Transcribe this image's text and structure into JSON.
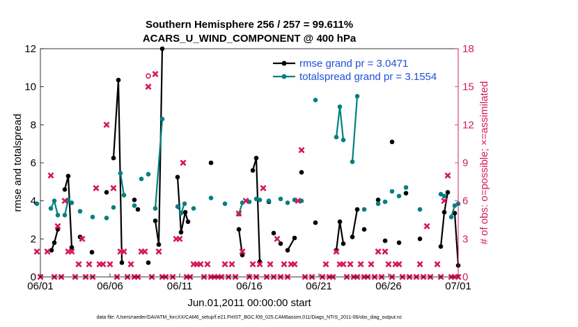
{
  "chart_data": {
    "type": "line",
    "title": [
      "Southern Hemisphere 256 / 257 = 99.611%",
      "ACARS_U_WIND_COMPONENT @ 400 hPa"
    ],
    "xlabel": "Jun.01,2011 00:00:00 start",
    "ylabel": "rmse and totalspread",
    "ylabel_right": "# of obs: o=possible; ×=assimilated",
    "footnote": "data file: /Users/raeder/DAI/ATM_forcXX/CAM6_setup/f.e21.FHIST_BGC.f09_025.CAM6assim.011/Diags_NTrS_2011-06/obs_diag_output.nc",
    "xlim": [
      0,
      30
    ],
    "ylim": [
      0,
      12
    ],
    "ylim_right": [
      0,
      18
    ],
    "x_ticks": [
      {
        "x": 0,
        "label": "06/01"
      },
      {
        "x": 5,
        "label": "06/06"
      },
      {
        "x": 10,
        "label": "06/11"
      },
      {
        "x": 15,
        "label": "06/16"
      },
      {
        "x": 20,
        "label": "06/21"
      },
      {
        "x": 25,
        "label": "06/26"
      },
      {
        "x": 30,
        "label": "07/01"
      }
    ],
    "y_ticks": [
      0,
      2,
      4,
      6,
      8,
      10,
      12
    ],
    "y_ticks_right": [
      0,
      3,
      6,
      9,
      12,
      15,
      18
    ],
    "legend_position": "top-right",
    "series": [
      {
        "name": "rmse grand pr = 3.0471",
        "color": "#000000",
        "segments": [
          [
            [
              0.8,
              1.4
            ],
            [
              1.0,
              1.8
            ],
            [
              1.25,
              2.5
            ]
          ],
          [
            [
              1.75,
              4.6
            ],
            [
              2.0,
              5.3
            ],
            [
              2.25,
              1.55
            ]
          ],
          [
            [
              2.85,
              2.1
            ]
          ],
          [
            [
              3.7,
              1.3
            ]
          ],
          [
            [
              4.75,
              4.45
            ]
          ],
          [
            [
              5.25,
              6.25
            ],
            [
              5.6,
              10.35
            ],
            [
              5.85,
              0.75
            ]
          ],
          [
            [
              6.75,
              4.05
            ]
          ],
          [
            [
              7.0,
              3.55
            ]
          ],
          [
            [
              7.75,
              0.75
            ]
          ],
          [
            [
              8.25,
              2.95
            ],
            [
              8.5,
              1.7
            ],
            [
              8.75,
              12.0
            ]
          ],
          [
            [
              9.85,
              5.25
            ],
            [
              10.1,
              2.35
            ],
            [
              10.4,
              3.4
            ],
            [
              10.6,
              2.9
            ]
          ],
          [
            [
              12.25,
              6.0
            ]
          ],
          [
            [
              14.25,
              2.5
            ],
            [
              14.5,
              1.15
            ]
          ],
          [
            [
              15.25,
              5.6
            ],
            [
              15.5,
              6.25
            ],
            [
              15.75,
              0.8
            ]
          ],
          [
            [
              16.4,
              3.95
            ]
          ],
          [
            [
              16.75,
              2.3
            ]
          ],
          [
            [
              17.25,
              1.75
            ]
          ],
          [
            [
              17.75,
              1.4
            ],
            [
              18.25,
              2.05
            ]
          ],
          [
            [
              18.75,
              5.5
            ]
          ],
          [
            [
              19.75,
              2.85
            ]
          ],
          [
            [
              21.25,
              1.4
            ],
            [
              21.5,
              2.9
            ],
            [
              21.75,
              1.75
            ]
          ],
          [
            [
              22.4,
              2.1
            ],
            [
              22.75,
              3.55
            ]
          ],
          [
            [
              23.25,
              2.5
            ]
          ],
          [
            [
              24.25,
              4.05
            ]
          ],
          [
            [
              24.75,
              1.9
            ]
          ],
          [
            [
              25.25,
              7.1
            ]
          ],
          [
            [
              25.75,
              1.8
            ]
          ],
          [
            [
              26.25,
              4.4
            ]
          ],
          [
            [
              27.25,
              2.0
            ]
          ],
          [
            [
              28.75,
              1.6
            ],
            [
              29.0,
              3.4
            ],
            [
              29.25,
              4.45
            ]
          ],
          [
            [
              29.75,
              3.35
            ],
            [
              30.0,
              0.6
            ]
          ]
        ]
      },
      {
        "name": "totalspread grand pr = 3.1554",
        "color": "#008080",
        "segments": [
          [
            [
              -0.25,
              3.85
            ]
          ],
          [
            [
              0.75,
              3.6
            ],
            [
              1.0,
              4.0
            ],
            [
              1.25,
              3.25
            ]
          ],
          [
            [
              1.75,
              3.25
            ],
            [
              2.0,
              4.05
            ],
            [
              2.25,
              3.9
            ]
          ],
          [
            [
              2.85,
              3.45
            ]
          ],
          [
            [
              3.75,
              3.15
            ]
          ],
          [
            [
              4.75,
              3.1
            ]
          ],
          [
            [
              5.25,
              3.65
            ]
          ],
          [
            [
              5.75,
              5.45
            ],
            [
              6.0,
              4.3
            ]
          ],
          [
            [
              6.75,
              3.75
            ]
          ],
          [
            [
              7.25,
              5.15
            ]
          ],
          [
            [
              7.75,
              5.4
            ]
          ],
          [
            [
              8.25,
              3.6
            ],
            [
              8.75,
              8.3
            ]
          ],
          [
            [
              9.85,
              3.7
            ],
            [
              10.1,
              3.35
            ],
            [
              10.35,
              3.85
            ]
          ],
          [
            [
              11.0,
              3.6
            ]
          ],
          [
            [
              12.25,
              4.15
            ]
          ],
          [
            [
              13.25,
              3.85
            ]
          ],
          [
            [
              14.25,
              3.3
            ],
            [
              14.5,
              3.9
            ]
          ],
          [
            [
              15.0,
              3.95
            ]
          ],
          [
            [
              15.5,
              4.1
            ],
            [
              15.75,
              4.05
            ]
          ],
          [
            [
              16.4,
              4.0
            ]
          ],
          [
            [
              17.25,
              4.1
            ]
          ],
          [
            [
              17.75,
              3.9
            ]
          ],
          [
            [
              18.25,
              4.05
            ]
          ],
          [
            [
              18.75,
              4.0
            ]
          ],
          [
            [
              19.75,
              9.3
            ]
          ],
          [
            [
              21.25,
              7.35
            ],
            [
              21.5,
              8.95
            ],
            [
              21.75,
              7.2
            ]
          ],
          [
            [
              22.4,
              6.05
            ],
            [
              22.75,
              9.5
            ]
          ],
          [
            [
              23.25,
              3.55
            ]
          ],
          [
            [
              24.25,
              3.85
            ]
          ],
          [
            [
              24.75,
              3.95
            ]
          ],
          [
            [
              25.25,
              4.5
            ]
          ],
          [
            [
              25.75,
              4.25
            ]
          ],
          [
            [
              26.25,
              4.7
            ]
          ],
          [
            [
              27.25,
              3.55
            ]
          ],
          [
            [
              28.75,
              4.35
            ],
            [
              29.0,
              4.25
            ]
          ],
          [
            [
              29.5,
              3.15
            ],
            [
              29.75,
              3.75
            ],
            [
              30.0,
              3.85
            ]
          ]
        ]
      }
    ],
    "obs_possible": [
      [
        7.75,
        15.85
      ]
    ],
    "obs_assimilated": [
      [
        -0.25,
        2.0
      ],
      [
        0.0,
        0.0
      ],
      [
        0.5,
        2.0
      ],
      [
        0.75,
        8.0
      ],
      [
        1.0,
        0.0
      ],
      [
        1.25,
        4.0
      ],
      [
        1.5,
        0.0
      ],
      [
        1.75,
        6.0
      ],
      [
        2.0,
        2.0
      ],
      [
        2.25,
        2.0
      ],
      [
        2.5,
        0.0
      ],
      [
        2.75,
        1.0
      ],
      [
        3.0,
        3.0
      ],
      [
        3.25,
        0.0
      ],
      [
        3.5,
        1.0
      ],
      [
        3.75,
        0.0
      ],
      [
        4.0,
        7.0
      ],
      [
        4.25,
        1.0
      ],
      [
        4.5,
        1.0
      ],
      [
        4.75,
        12.0
      ],
      [
        5.0,
        1.0
      ],
      [
        5.25,
        7.0
      ],
      [
        5.5,
        0.0
      ],
      [
        5.75,
        2.0
      ],
      [
        6.0,
        2.0
      ],
      [
        6.25,
        0.0
      ],
      [
        6.5,
        1.0
      ],
      [
        6.75,
        0.0
      ],
      [
        7.0,
        0.0
      ],
      [
        7.25,
        2.0
      ],
      [
        7.5,
        2.0
      ],
      [
        7.75,
        15.0
      ],
      [
        8.0,
        0.0
      ],
      [
        8.25,
        16.0
      ],
      [
        8.5,
        2.0
      ],
      [
        8.75,
        0.0
      ],
      [
        9.0,
        0.0
      ],
      [
        9.5,
        0.0
      ],
      [
        9.75,
        3.0
      ],
      [
        10.0,
        3.0
      ],
      [
        10.25,
        9.0
      ],
      [
        10.5,
        0.0
      ],
      [
        10.75,
        0.0
      ],
      [
        11.0,
        1.0
      ],
      [
        11.25,
        1.0
      ],
      [
        11.5,
        1.0
      ],
      [
        11.75,
        0.0
      ],
      [
        12.0,
        1.0
      ],
      [
        12.25,
        0.0
      ],
      [
        12.5,
        0.0
      ],
      [
        12.75,
        0.0
      ],
      [
        13.0,
        0.0
      ],
      [
        13.25,
        1.0
      ],
      [
        13.5,
        0.0
      ],
      [
        13.75,
        1.0
      ],
      [
        14.0,
        0.0
      ],
      [
        14.25,
        5.0
      ],
      [
        14.5,
        2.0
      ],
      [
        14.75,
        6.0
      ],
      [
        15.0,
        0.0
      ],
      [
        15.25,
        1.0
      ],
      [
        15.5,
        0.0
      ],
      [
        15.75,
        1.0
      ],
      [
        16.0,
        7.0
      ],
      [
        16.25,
        0.0
      ],
      [
        16.5,
        1.0
      ],
      [
        16.75,
        0.0
      ],
      [
        17.0,
        3.0
      ],
      [
        17.25,
        0.0
      ],
      [
        17.5,
        1.0
      ],
      [
        17.75,
        0.0
      ],
      [
        18.0,
        1.0
      ],
      [
        18.25,
        1.0
      ],
      [
        18.5,
        6.0
      ],
      [
        18.75,
        10.0
      ],
      [
        19.0,
        0.0
      ],
      [
        19.5,
        0.0
      ],
      [
        20.25,
        0.0
      ],
      [
        20.5,
        1.0
      ],
      [
        20.75,
        0.0
      ],
      [
        21.0,
        0.0
      ],
      [
        21.25,
        2.0
      ],
      [
        21.5,
        1.0
      ],
      [
        21.75,
        1.0
      ],
      [
        22.0,
        0.0
      ],
      [
        22.25,
        1.0
      ],
      [
        22.5,
        0.0
      ],
      [
        22.75,
        0.0
      ],
      [
        23.0,
        1.0
      ],
      [
        23.25,
        0.0
      ],
      [
        23.5,
        0.0
      ],
      [
        23.75,
        1.0
      ],
      [
        24.0,
        0.0
      ],
      [
        24.25,
        2.0
      ],
      [
        24.5,
        0.0
      ],
      [
        24.75,
        2.0
      ],
      [
        25.0,
        1.0
      ],
      [
        25.25,
        0.0
      ],
      [
        25.5,
        1.0
      ],
      [
        25.75,
        1.0
      ],
      [
        26.0,
        0.0
      ],
      [
        26.5,
        0.0
      ],
      [
        27.0,
        0.0
      ],
      [
        27.25,
        1.0
      ],
      [
        27.5,
        0.0
      ],
      [
        27.75,
        4.0
      ],
      [
        28.0,
        0.0
      ],
      [
        28.5,
        1.0
      ],
      [
        28.75,
        0.0
      ],
      [
        29.0,
        6.0
      ],
      [
        29.25,
        8.0
      ],
      [
        29.5,
        0.0
      ],
      [
        29.75,
        0.0
      ],
      [
        30.0,
        0.0
      ]
    ]
  }
}
